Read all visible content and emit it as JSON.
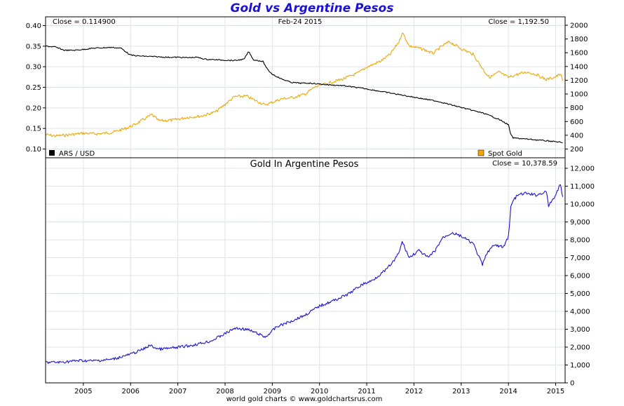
{
  "title": "Gold vs Argentine Pesos",
  "footer": "world gold charts © www.goldchartsrus.com",
  "colors": {
    "ars": "#000000",
    "gold": "#f0a800",
    "pesos": "#1a12d6",
    "title": "#1a12d6",
    "grid": "#dde3ec"
  },
  "chart_data": [
    {
      "id": "top",
      "type": "line",
      "info": {
        "left": "Close = 0.114900",
        "center": "Feb-24  2015",
        "right": "Close = 1,192.50"
      },
      "ylim_left": [
        0.09,
        0.41
      ],
      "ylim_right": [
        150,
        2080
      ],
      "yticks_left": [
        "0.40",
        "0.35",
        "0.30",
        "0.25",
        "0.20",
        "0.15",
        "0.10"
      ],
      "yticks_right": [
        "2000",
        "1800",
        "1600",
        "1400",
        "1200",
        "1000",
        "800",
        "600",
        "400",
        "200"
      ],
      "legend": [
        {
          "name": "ARS / USD",
          "color": "#000000",
          "position": "bottom-left"
        },
        {
          "name": "Spot Gold",
          "color": "#f0a800",
          "position": "bottom-right"
        }
      ],
      "series": [
        {
          "name": "ARS / USD",
          "axis": "left",
          "color": "#000000",
          "x": [
            2004.2,
            2004.4,
            2004.6,
            2004.8,
            2005.0,
            2005.2,
            2005.4,
            2005.6,
            2005.8,
            2006.0,
            2006.2,
            2006.4,
            2006.6,
            2006.8,
            2007.0,
            2007.2,
            2007.4,
            2007.6,
            2007.8,
            2008.0,
            2008.2,
            2008.4,
            2008.5,
            2008.6,
            2008.8,
            2008.9,
            2009.0,
            2009.2,
            2009.4,
            2009.6,
            2009.8,
            2010.0,
            2010.2,
            2010.5,
            2011.0,
            2011.5,
            2012.0,
            2012.5,
            2013.0,
            2013.5,
            2013.8,
            2014.0,
            2014.05,
            2014.1,
            2014.5,
            2015.0,
            2015.15
          ],
          "values": [
            0.35,
            0.348,
            0.34,
            0.34,
            0.342,
            0.345,
            0.346,
            0.347,
            0.345,
            0.328,
            0.326,
            0.325,
            0.324,
            0.323,
            0.323,
            0.322,
            0.323,
            0.318,
            0.317,
            0.316,
            0.315,
            0.318,
            0.337,
            0.317,
            0.313,
            0.293,
            0.282,
            0.27,
            0.262,
            0.26,
            0.26,
            0.258,
            0.256,
            0.254,
            0.246,
            0.236,
            0.226,
            0.216,
            0.201,
            0.186,
            0.172,
            0.159,
            0.135,
            0.127,
            0.123,
            0.118,
            0.115
          ]
        },
        {
          "name": "Spot Gold",
          "axis": "right",
          "color": "#f0a800",
          "x": [
            2004.2,
            2004.4,
            2004.6,
            2005.0,
            2005.3,
            2005.6,
            2005.9,
            2006.1,
            2006.35,
            2006.45,
            2006.6,
            2006.9,
            2007.2,
            2007.5,
            2007.8,
            2008.0,
            2008.2,
            2008.45,
            2008.6,
            2008.85,
            2009.0,
            2009.2,
            2009.45,
            2009.7,
            2009.9,
            2010.0,
            2010.3,
            2010.5,
            2010.8,
            2011.0,
            2011.3,
            2011.5,
            2011.7,
            2011.75,
            2011.9,
            2012.2,
            2012.4,
            2012.6,
            2012.75,
            2013.0,
            2013.25,
            2013.5,
            2013.6,
            2013.8,
            2014.0,
            2014.2,
            2014.4,
            2014.6,
            2014.8,
            2015.0,
            2015.1,
            2015.15
          ],
          "values": [
            410,
            390,
            400,
            430,
            420,
            440,
            500,
            560,
            660,
            700,
            610,
            620,
            660,
            680,
            740,
            850,
            960,
            970,
            920,
            840,
            880,
            930,
            950,
            1000,
            1100,
            1120,
            1180,
            1220,
            1300,
            1390,
            1480,
            1580,
            1780,
            1900,
            1700,
            1650,
            1590,
            1700,
            1760,
            1660,
            1580,
            1320,
            1240,
            1320,
            1240,
            1290,
            1320,
            1280,
            1210,
            1250,
            1290,
            1193
          ]
        }
      ]
    },
    {
      "id": "bottom",
      "type": "line",
      "title": "Gold In Argentine Pesos",
      "info": {
        "right": "Close = 10,378.59"
      },
      "ylim": [
        0,
        12300
      ],
      "yticks": [
        "12,000",
        "11,000",
        "10,000",
        "9,000",
        "8,000",
        "7,000",
        "6,000",
        "5,000",
        "4,000",
        "3,000",
        "2,000",
        "1,000",
        "0"
      ],
      "x_ticks": [
        "2005",
        "2006",
        "2007",
        "2008",
        "2009",
        "2010",
        "2011",
        "2012",
        "2013",
        "2014",
        "2015"
      ],
      "xlim": [
        2004.2,
        2015.2
      ],
      "series": [
        {
          "name": "Gold In Argentine Pesos",
          "color": "#1a12d6",
          "x": [
            2004.2,
            2004.5,
            2004.9,
            2005.2,
            2005.6,
            2006.0,
            2006.3,
            2006.4,
            2006.6,
            2006.9,
            2007.3,
            2007.7,
            2008.0,
            2008.2,
            2008.45,
            2008.7,
            2008.85,
            2009.1,
            2009.4,
            2009.7,
            2010.0,
            2010.3,
            2010.6,
            2010.9,
            2011.1,
            2011.4,
            2011.6,
            2011.7,
            2011.75,
            2011.9,
            2012.1,
            2012.3,
            2012.45,
            2012.6,
            2012.8,
            2013.0,
            2013.25,
            2013.45,
            2013.55,
            2013.7,
            2013.9,
            2014.0,
            2014.05,
            2014.1,
            2014.2,
            2014.35,
            2014.6,
            2014.8,
            2014.85,
            2015.0,
            2015.1,
            2015.15
          ],
          "values": [
            1150,
            1150,
            1250,
            1230,
            1310,
            1600,
            1920,
            2100,
            1880,
            1950,
            2100,
            2340,
            2750,
            3050,
            3000,
            2750,
            2550,
            3150,
            3450,
            3800,
            4300,
            4600,
            4950,
            5500,
            5700,
            6300,
            6900,
            7400,
            7900,
            7000,
            7400,
            7000,
            7400,
            8100,
            8400,
            8200,
            7800,
            6600,
            7300,
            7700,
            7600,
            8200,
            9800,
            10200,
            10500,
            10600,
            10500,
            10700,
            9900,
            10500,
            11100,
            10400
          ]
        }
      ]
    }
  ]
}
